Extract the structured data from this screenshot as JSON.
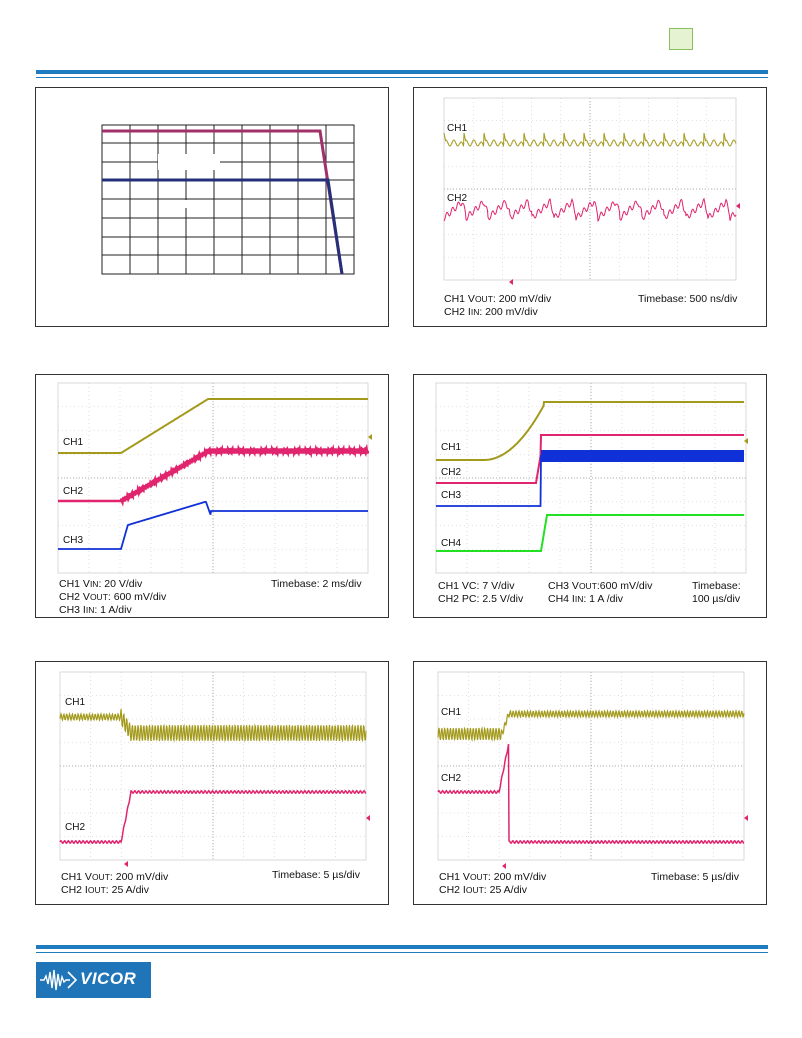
{
  "panels": {
    "p2": {
      "ch1": "CH1",
      "ch2": "CH2",
      "cap_ch1_a": "CH1 V",
      "cap_ch1_sub": "OUT",
      "cap_ch1_b": ": 200 mV/div",
      "cap_ch2_a": "CH2 I",
      "cap_ch2_sub": "IN",
      "cap_ch2_b": ": 200 mV/div",
      "timebase": "Timebase: 500 ns/div"
    },
    "p3": {
      "ch1": "CH1",
      "ch2": "CH2",
      "ch3": "CH3",
      "cap_ch1_a": "CH1 V",
      "cap_ch1_sub": "IN",
      "cap_ch1_b": ": 20 V/div",
      "cap_ch2_a": "CH2 V",
      "cap_ch2_sub": "OUT",
      "cap_ch2_b": ": 600 mV/div",
      "cap_ch3_a": "CH3 I",
      "cap_ch3_sub": "IN",
      "cap_ch3_b": ": 1 A/div",
      "timebase": "Timebase: 2 ms/div"
    },
    "p4": {
      "ch1": "CH1",
      "ch2": "CH2",
      "ch3": "CH3",
      "ch4": "CH4",
      "cap_ch1": "CH1 VC: 7 V/div",
      "cap_ch2": "CH2 PC: 2.5 V/div",
      "cap_ch3_a": "CH3 V",
      "cap_ch3_sub": "OUT",
      "cap_ch3_b": ":600 mV/div",
      "cap_ch4_a": "CH4 I",
      "cap_ch4_sub": "IN",
      "cap_ch4_b": ": 1 A /div",
      "timebase_1": "Timebase:",
      "timebase_2": "100 µs/div"
    },
    "p5": {
      "ch1": "CH1",
      "ch2": "CH2",
      "cap_ch1_a": "CH1 V",
      "cap_ch1_sub": "OUT",
      "cap_ch1_b": ": 200 mV/div",
      "cap_ch2_a": "CH2 I",
      "cap_ch2_sub": "OUT",
      "cap_ch2_b": ": 25 A/div",
      "timebase": "Timebase: 5 µs/div"
    },
    "p6": {
      "ch1": "CH1",
      "ch2": "CH2",
      "cap_ch1_a": "CH1 V",
      "cap_ch1_sub": "OUT",
      "cap_ch1_b": ": 200 mV/div",
      "cap_ch2_a": "CH2 I",
      "cap_ch2_sub": "OUT",
      "cap_ch2_b": ": 25 A/div",
      "timebase": "Timebase: 5 µs/div"
    }
  },
  "logo": {
    "text": "VICOR"
  },
  "colors": {
    "accent": "#1f7bc0",
    "trace_olive": "#a39a1c",
    "trace_pink": "#e0246e",
    "trace_blue": "#1030d8",
    "trace_green": "#22e022",
    "chart1_magenta": "#a0306a",
    "chart1_navy": "#24307a"
  }
}
